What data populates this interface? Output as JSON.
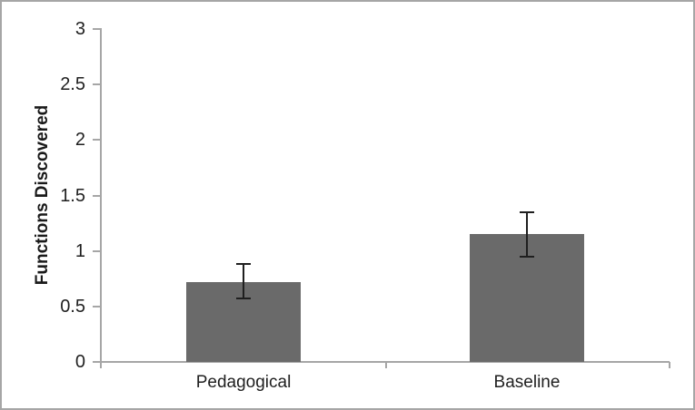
{
  "chart_data": {
    "type": "bar",
    "title": "",
    "xlabel": "",
    "ylabel": "Functions Discovered",
    "categories": [
      "Pedagogical",
      "Baseline"
    ],
    "values": [
      0.72,
      1.15
    ],
    "error_bars": {
      "plus": [
        0.16,
        0.2
      ],
      "minus": [
        0.15,
        0.2
      ]
    },
    "ylim": [
      0,
      3
    ],
    "yticks": [
      0,
      0.5,
      1,
      1.5,
      2,
      2.5,
      3
    ],
    "ytick_labels": [
      "0",
      "0.5",
      "1",
      "1.5",
      "2",
      "2.5",
      "3"
    ],
    "grid": false,
    "legend": null,
    "colors": {
      "bar_fill": "#6a6a6a",
      "axis_line": "#a6a6a6",
      "error_bar": "#1f1f1f",
      "text": "#1f1f1f",
      "border": "#a6a6a6",
      "background": "#ffffff"
    }
  }
}
